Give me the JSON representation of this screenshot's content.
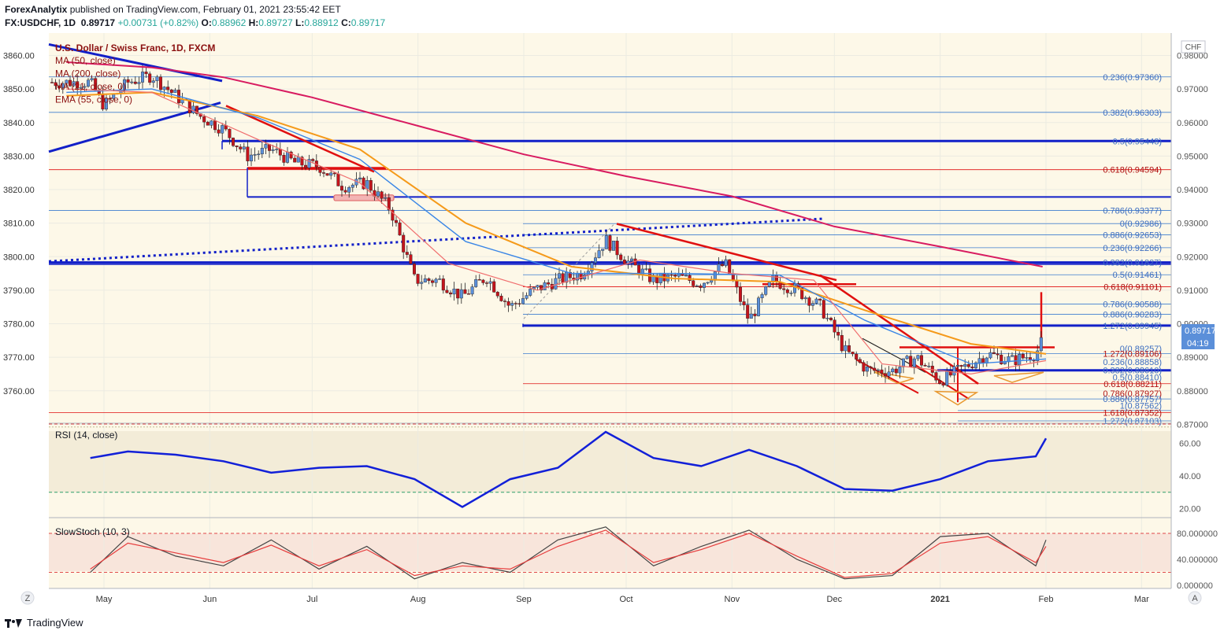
{
  "header": {
    "publisher": "ForexAnalytix",
    "published_text": "published on TradingView.com, February 01, 2021 23:55:42 EET",
    "symbol": "FX:USDCHF, 1D",
    "last": "0.89717",
    "change": "+0.00731 (+0.82%)",
    "o_label": "O:",
    "o_value": "0.88962",
    "h_label": "H:",
    "h_value": "0.89727",
    "l_label": "L:",
    "l_value": "0.88912",
    "c_label": "C:",
    "c_value": "0.89717"
  },
  "legend": {
    "title": "U.S. Dollar / Swiss Franc, 1D, FXCM",
    "items": [
      "MA (50, close)",
      "MA (200, close)",
      "MA (21, close, 0)",
      "EMA (55, close, 0)"
    ]
  },
  "price_axis": {
    "currency": "CHF",
    "last_price": "0.89717",
    "countdown": "04:19",
    "ticks": [
      "0.98000",
      "0.97000",
      "0.96000",
      "0.95000",
      "0.94000",
      "0.93000",
      "0.92000",
      "0.91000",
      "0.90000",
      "0.89000",
      "0.88000",
      "0.87000"
    ]
  },
  "left_scale": {
    "ticks": [
      "3860.00",
      "3850.00",
      "3840.00",
      "3830.00",
      "3820.00",
      "3810.00",
      "3800.00",
      "3790.00",
      "3780.00",
      "3770.00",
      "3760.00"
    ]
  },
  "fib_labels": [
    "0.236(0.97360)",
    "0.382(0.96303)",
    "0.5(0.95448)",
    "0.618(0.94594)",
    "0.786(0.93377)",
    "0(0.92986)",
    "0.886(0.92653)",
    "0.236(0.92266)",
    "0.382(0.91827)",
    "0.5(0.91461)",
    "0.618(0.91101)",
    "0.786(0.90588)",
    "0.886(0.90283)",
    "1.272(0.89945)",
    "0(0.89257)",
    "1.272(0.89106)",
    "0.236(0.88858)",
    "0.382(0.88610)",
    "0.5(0.88410)",
    "0.618(0.88211)",
    "0.786(0.87927)",
    "0.886(0.87757)",
    "1(0.87562)",
    "1.618(0.87352)",
    "1.272(0.87103)"
  ],
  "rsi": {
    "label": "RSI (14, close)",
    "ticks": [
      "60.00",
      "40.00",
      "20.00"
    ]
  },
  "stoch": {
    "label": "SlowStoch (10, 3)",
    "ticks": [
      "80.000000",
      "40.000000",
      "0.000000"
    ]
  },
  "time_axis": {
    "labels": [
      "May",
      "Jun",
      "Jul",
      "Aug",
      "Sep",
      "Oct",
      "Nov",
      "Dec",
      "2021",
      "Feb",
      "Mar"
    ]
  },
  "corner_left": "Z",
  "corner_right": "A",
  "footer": {
    "brand": "TradingView"
  },
  "colors": {
    "bg_main": "#fdf8e8",
    "up": "#5b8fd9",
    "down": "#c4141c",
    "blue_line": "#1220c8",
    "red_line": "#e01010",
    "ma200": "#d81b60",
    "ema55": "#f59a1a",
    "ma50": "#3a86e6",
    "ma21": "#f06e6e",
    "rsi": "#1220d8",
    "stoch_k": "#444444",
    "stoch_d": "#e63c3c"
  },
  "chart_data": [
    {
      "type": "candlestick",
      "title": "U.S. Dollar / Swiss Franc, 1D, FXCM",
      "ylim": [
        0.867,
        0.986
      ],
      "x_range": [
        "2020-04-20",
        "2021-03-15"
      ],
      "x": [
        "2020-04-27",
        "2020-05-01",
        "2020-05-08",
        "2020-05-15",
        "2020-05-22",
        "2020-05-29",
        "2020-06-05",
        "2020-06-12",
        "2020-06-19",
        "2020-06-26",
        "2020-07-03",
        "2020-07-10",
        "2020-07-17",
        "2020-07-24",
        "2020-07-31",
        "2020-08-07",
        "2020-08-14",
        "2020-08-21",
        "2020-08-28",
        "2020-09-04",
        "2020-09-11",
        "2020-09-18",
        "2020-09-25",
        "2020-10-02",
        "2020-10-09",
        "2020-10-16",
        "2020-10-23",
        "2020-10-30",
        "2020-11-06",
        "2020-11-13",
        "2020-11-20",
        "2020-11-27",
        "2020-12-04",
        "2020-12-11",
        "2020-12-18",
        "2020-12-25",
        "2021-01-01",
        "2021-01-08",
        "2021-01-15",
        "2021-01-22",
        "2021-01-29",
        "2021-02-01"
      ],
      "series": [
        {
          "name": "close",
          "values": [
            0.972,
            0.965,
            0.972,
            0.974,
            0.968,
            0.962,
            0.958,
            0.95,
            0.952,
            0.948,
            0.947,
            0.941,
            0.942,
            0.934,
            0.913,
            0.913,
            0.908,
            0.914,
            0.905,
            0.91,
            0.913,
            0.915,
            0.925,
            0.918,
            0.913,
            0.914,
            0.912,
            0.918,
            0.901,
            0.913,
            0.91,
            0.905,
            0.892,
            0.886,
            0.886,
            0.89,
            0.883,
            0.887,
            0.891,
            0.889,
            0.891,
            0.897
          ]
        }
      ]
    },
    {
      "type": "line",
      "title": "RSI (14, close)",
      "ylim": [
        15,
        70
      ],
      "x_range": [
        "2020-04-20",
        "2021-03-15"
      ],
      "x": [
        "2020-04-27",
        "2020-05-08",
        "2020-05-22",
        "2020-06-05",
        "2020-06-19",
        "2020-07-03",
        "2020-07-17",
        "2020-07-31",
        "2020-08-14",
        "2020-08-28",
        "2020-09-11",
        "2020-09-25",
        "2020-10-09",
        "2020-10-23",
        "2020-11-06",
        "2020-11-20",
        "2020-12-04",
        "2020-12-18",
        "2021-01-01",
        "2021-01-15",
        "2021-01-29",
        "2021-02-01"
      ],
      "series": [
        {
          "name": "RSI (14, close)",
          "values": [
            51,
            55,
            53,
            49,
            42,
            45,
            46,
            38,
            21,
            38,
            45,
            67,
            51,
            46,
            56,
            46,
            32,
            31,
            38,
            49,
            52,
            63
          ]
        }
      ]
    },
    {
      "type": "line",
      "title": "SlowStoch (10, 3)",
      "ylim": [
        -3,
        100
      ],
      "x_range": [
        "2020-04-20",
        "2021-03-15"
      ],
      "x": [
        "2020-04-27",
        "2020-05-08",
        "2020-05-22",
        "2020-06-05",
        "2020-06-19",
        "2020-07-03",
        "2020-07-17",
        "2020-07-31",
        "2020-08-14",
        "2020-08-28",
        "2020-09-11",
        "2020-09-25",
        "2020-10-09",
        "2020-10-23",
        "2020-11-06",
        "2020-11-20",
        "2020-12-04",
        "2020-12-18",
        "2021-01-01",
        "2021-01-15",
        "2021-01-29",
        "2021-02-01"
      ],
      "series": [
        {
          "name": "K",
          "values": [
            20,
            75,
            45,
            30,
            70,
            25,
            60,
            10,
            35,
            20,
            70,
            90,
            30,
            60,
            85,
            40,
            10,
            15,
            75,
            80,
            30,
            70
          ]
        },
        {
          "name": "D",
          "values": [
            25,
            65,
            50,
            35,
            62,
            30,
            55,
            15,
            30,
            25,
            60,
            85,
            35,
            55,
            80,
            45,
            12,
            18,
            65,
            75,
            35,
            60
          ]
        }
      ]
    }
  ]
}
